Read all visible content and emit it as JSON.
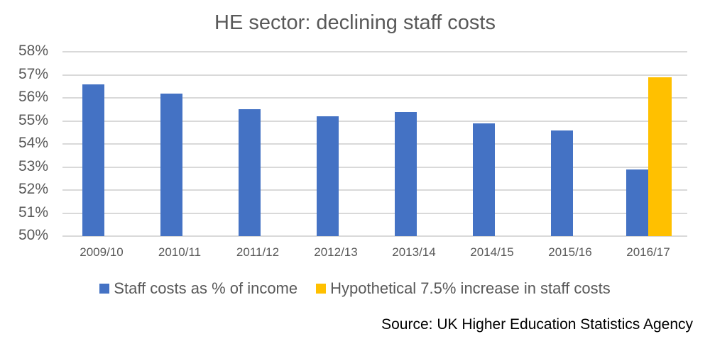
{
  "chart_data": {
    "type": "bar",
    "title": "HE sector: declining staff costs",
    "xlabel": "",
    "ylabel": "",
    "ylim": [
      50,
      58
    ],
    "yticks": [
      "50%",
      "51%",
      "52%",
      "53%",
      "54%",
      "55%",
      "56%",
      "57%",
      "58%"
    ],
    "grid": true,
    "legend_position": "bottom",
    "categories": [
      "2009/10",
      "2010/11",
      "2011/12",
      "2012/13",
      "2013/14",
      "2014/15",
      "2015/16",
      "2016/17"
    ],
    "series": [
      {
        "name": "Staff costs as % of income",
        "color": "#4472C4",
        "values": [
          56.6,
          56.2,
          55.5,
          55.2,
          55.4,
          54.9,
          54.6,
          52.9
        ]
      },
      {
        "name": "Hypothetical 7.5% increase in staff costs",
        "color": "#FFC000",
        "values": [
          null,
          null,
          null,
          null,
          null,
          null,
          null,
          56.9
        ]
      }
    ],
    "annotations": [
      "Source: UK Higher Education Statistics Agency"
    ]
  },
  "title": "HE sector: declining staff costs",
  "legend": {
    "items": [
      {
        "label": "Staff costs as % of income",
        "color": "#4472C4"
      },
      {
        "label": "Hypothetical 7.5% increase in staff costs",
        "color": "#FFC000"
      }
    ]
  },
  "source": "Source: UK Higher Education Statistics Agency"
}
